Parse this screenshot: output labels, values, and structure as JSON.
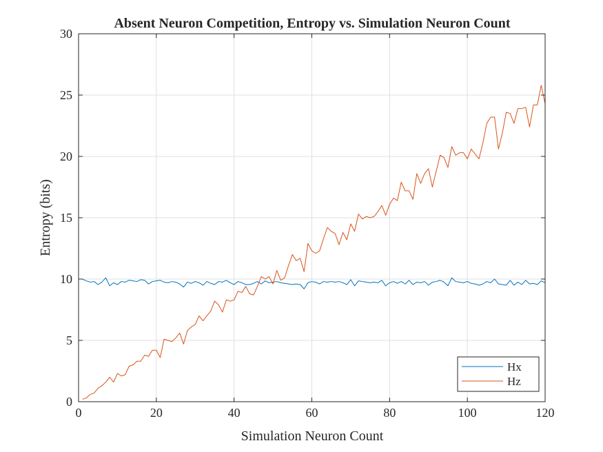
{
  "chart_data": {
    "type": "line",
    "title": "Absent Neuron Competition, Entropy vs. Simulation Neuron Count",
    "xlabel": "Simulation Neuron Count",
    "ylabel": "Entropy (bits)",
    "xlim": [
      0,
      120
    ],
    "ylim": [
      0,
      30
    ],
    "xticks": [
      "0",
      "20",
      "40",
      "60",
      "80",
      "100",
      "120"
    ],
    "yticks": [
      "0",
      "5",
      "10",
      "15",
      "20",
      "25",
      "30"
    ],
    "grid": true,
    "legend_position": "bottom-right",
    "series": [
      {
        "name": "Hx",
        "color": "#0072BD",
        "x": [
          1,
          2,
          3,
          4,
          5,
          6,
          7,
          8,
          9,
          10,
          11,
          12,
          13,
          14,
          15,
          16,
          17,
          18,
          19,
          20,
          21,
          22,
          23,
          24,
          25,
          26,
          27,
          28,
          29,
          30,
          31,
          32,
          33,
          34,
          35,
          36,
          37,
          38,
          39,
          40,
          41,
          42,
          43,
          44,
          45,
          46,
          47,
          48,
          49,
          50,
          51,
          52,
          53,
          54,
          55,
          56,
          57,
          58,
          59,
          60,
          61,
          62,
          63,
          64,
          65,
          66,
          67,
          68,
          69,
          70,
          71,
          72,
          73,
          74,
          75,
          76,
          77,
          78,
          79,
          80,
          81,
          82,
          83,
          84,
          85,
          86,
          87,
          88,
          89,
          90,
          91,
          92,
          93,
          94,
          95,
          96,
          97,
          98,
          99,
          100,
          101,
          102,
          103,
          104,
          105,
          106,
          107,
          108,
          109,
          110,
          111,
          112,
          113,
          114,
          115,
          116,
          117,
          118,
          119,
          120
        ],
        "values": [
          10.0,
          9.85,
          9.75,
          9.8,
          9.55,
          9.75,
          10.1,
          9.45,
          9.7,
          9.55,
          9.8,
          9.75,
          9.9,
          9.85,
          9.8,
          9.95,
          9.9,
          9.6,
          9.8,
          9.85,
          9.9,
          9.75,
          9.7,
          9.8,
          9.75,
          9.6,
          9.35,
          9.75,
          9.65,
          9.8,
          9.7,
          9.5,
          9.8,
          9.65,
          9.55,
          9.8,
          9.75,
          9.9,
          9.7,
          9.55,
          9.8,
          9.7,
          9.55,
          9.55,
          9.65,
          9.8,
          9.6,
          9.85,
          9.7,
          9.75,
          9.8,
          9.7,
          9.65,
          9.6,
          9.55,
          9.6,
          9.55,
          9.2,
          9.7,
          9.8,
          9.75,
          9.6,
          9.8,
          9.75,
          9.8,
          9.75,
          9.8,
          9.7,
          9.55,
          9.95,
          9.45,
          9.85,
          9.8,
          9.75,
          9.7,
          9.75,
          9.7,
          9.9,
          9.45,
          9.7,
          9.8,
          9.65,
          9.8,
          9.6,
          9.9,
          9.55,
          9.75,
          9.7,
          9.8,
          9.5,
          9.75,
          9.8,
          9.9,
          9.75,
          9.45,
          10.1,
          9.8,
          9.75,
          9.7,
          9.8,
          9.65,
          9.6,
          9.5,
          9.6,
          9.8,
          9.7,
          10.0,
          9.6,
          9.55,
          9.5,
          9.9,
          9.5,
          9.75,
          9.55,
          9.9,
          9.6,
          9.65,
          9.55,
          9.85,
          9.7
        ]
      },
      {
        "name": "Hz",
        "color": "#D95319",
        "x": [
          1,
          2,
          3,
          4,
          5,
          6,
          7,
          8,
          9,
          10,
          11,
          12,
          13,
          14,
          15,
          16,
          17,
          18,
          19,
          20,
          21,
          22,
          23,
          24,
          25,
          26,
          27,
          28,
          29,
          30,
          31,
          32,
          33,
          34,
          35,
          36,
          37,
          38,
          39,
          40,
          41,
          42,
          43,
          44,
          45,
          46,
          47,
          48,
          49,
          50,
          51,
          52,
          53,
          54,
          55,
          56,
          57,
          58,
          59,
          60,
          61,
          62,
          63,
          64,
          65,
          66,
          67,
          68,
          69,
          70,
          71,
          72,
          73,
          74,
          75,
          76,
          77,
          78,
          79,
          80,
          81,
          82,
          83,
          84,
          85,
          86,
          87,
          88,
          89,
          90,
          91,
          92,
          93,
          94,
          95,
          96,
          97,
          98,
          99,
          100,
          101,
          102,
          103,
          104,
          105,
          106,
          107,
          108,
          109,
          110,
          111,
          112,
          113,
          114,
          115,
          116,
          117,
          118,
          119,
          120
        ],
        "values": [
          0.2,
          0.3,
          0.6,
          0.7,
          1.1,
          1.3,
          1.6,
          2.0,
          1.6,
          2.3,
          2.1,
          2.2,
          2.9,
          3.0,
          3.3,
          3.3,
          3.8,
          3.7,
          4.2,
          4.2,
          3.6,
          5.1,
          5.0,
          4.9,
          5.2,
          5.6,
          4.7,
          5.8,
          6.1,
          6.3,
          7.0,
          6.6,
          7.0,
          7.4,
          8.2,
          7.9,
          7.3,
          8.3,
          8.2,
          8.3,
          9.0,
          8.9,
          9.4,
          8.8,
          8.7,
          9.4,
          10.2,
          10.0,
          10.2,
          9.6,
          10.7,
          9.9,
          10.1,
          11.1,
          12.0,
          11.5,
          11.7,
          10.6,
          12.9,
          12.3,
          12.1,
          12.3,
          13.3,
          14.2,
          13.9,
          13.7,
          12.8,
          13.8,
          13.2,
          14.5,
          13.9,
          15.3,
          14.9,
          15.1,
          15.0,
          15.1,
          15.5,
          16.0,
          15.2,
          16.1,
          16.6,
          16.4,
          17.9,
          17.2,
          17.2,
          16.5,
          18.6,
          17.8,
          18.6,
          19.0,
          17.5,
          18.8,
          20.1,
          19.9,
          19.1,
          20.8,
          20.1,
          20.3,
          20.3,
          19.8,
          20.6,
          20.2,
          19.8,
          21.1,
          22.7,
          23.2,
          23.2,
          20.6,
          21.9,
          23.6,
          23.5,
          22.7,
          23.9,
          23.9,
          24.0,
          22.4,
          24.2,
          24.2,
          25.8,
          24.3
        ]
      }
    ]
  }
}
